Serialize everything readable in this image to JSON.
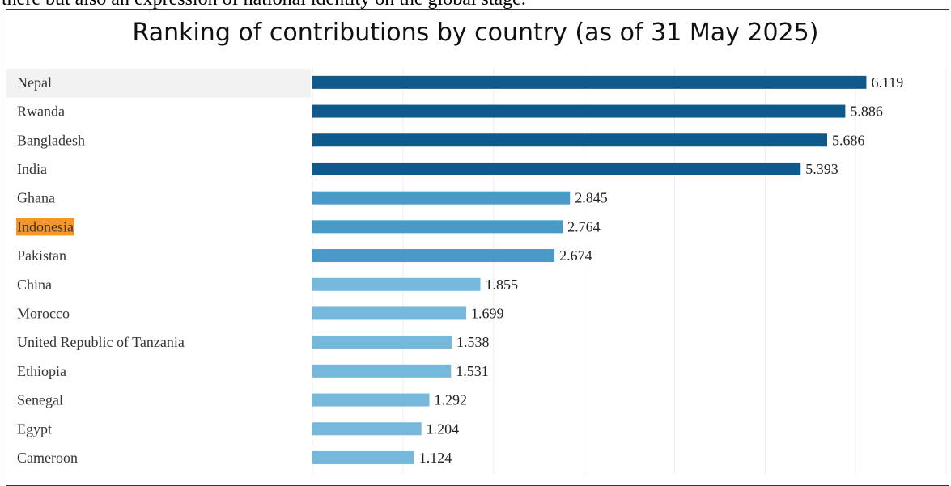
{
  "page": {
    "snippet_text": "there but also an expression of national identity on the global stage."
  },
  "chart_data": {
    "type": "bar",
    "orientation": "horizontal",
    "title": "Ranking of contributions by country (as of 31 May 2025)",
    "categories": [
      "Nepal",
      "Rwanda",
      "Bangladesh",
      "India",
      "Ghana",
      "Indonesia",
      "Pakistan",
      "China",
      "Morocco",
      "United Republic of Tanzania",
      "Ethiopia",
      "Senegal",
      "Egypt",
      "Cameroon"
    ],
    "values": [
      6119,
      5886,
      5686,
      5393,
      2845,
      2764,
      2674,
      1855,
      1699,
      1538,
      1531,
      1292,
      1204,
      1124
    ],
    "value_labels": [
      "6.119",
      "5.886",
      "5.686",
      "5.393",
      "2.845",
      "2.764",
      "2.674",
      "1.855",
      "1.699",
      "1.538",
      "1.531",
      "1.292",
      "1.204",
      "1.124"
    ],
    "xlim": [
      0,
      7000
    ],
    "grid": true,
    "selected_category": "Nepal",
    "highlighted_category": "Indonesia",
    "colors": {
      "tier1": "#0f5a8a",
      "tier2": "#4a9ac7",
      "tier3": "#76b7dc",
      "highlight": "#f5962a",
      "selected_row": "#f2f2f2",
      "grid": "#ececec"
    }
  }
}
